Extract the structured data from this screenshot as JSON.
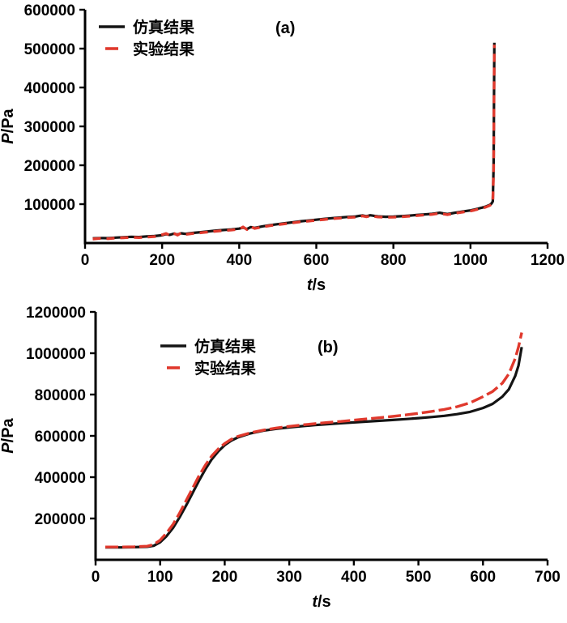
{
  "figure": {
    "background": "#ffffff"
  },
  "chart_data": [
    {
      "type": "line",
      "key": "chart-a",
      "panel_label": "(a)",
      "xlabel_var": "t",
      "xlabel_unit": "/s",
      "ylabel_var": "P",
      "ylabel_unit": "/Pa",
      "xlim": [
        0,
        1200
      ],
      "ylim": [
        0,
        600000
      ],
      "xticks": [
        0,
        200,
        400,
        600,
        800,
        1000,
        1200
      ],
      "yticks": [
        100000,
        200000,
        300000,
        400000,
        500000,
        600000
      ],
      "legend_position": "top-left-inside",
      "grid": false,
      "series": [
        {
          "key": "simulation",
          "name": "仿真结果",
          "color": "#141414",
          "dash": "solid",
          "width": 3.2,
          "x": [
            20,
            40,
            60,
            80,
            100,
            120,
            140,
            160,
            180,
            200,
            210,
            220,
            230,
            240,
            250,
            260,
            280,
            300,
            320,
            340,
            360,
            380,
            400,
            410,
            420,
            430,
            440,
            460,
            480,
            500,
            520,
            540,
            560,
            580,
            600,
            620,
            640,
            660,
            680,
            700,
            710,
            720,
            730,
            740,
            750,
            760,
            780,
            800,
            820,
            840,
            860,
            880,
            900,
            910,
            920,
            930,
            940,
            950,
            960,
            980,
            1000,
            1010,
            1020,
            1030,
            1040,
            1050,
            1055,
            1058,
            1060,
            1062
          ],
          "y": [
            12000,
            13000,
            12500,
            14000,
            15000,
            16000,
            15500,
            17000,
            18000,
            20000,
            23000,
            21000,
            24000,
            22000,
            25000,
            23500,
            26000,
            28000,
            30000,
            32000,
            33500,
            35000,
            37000,
            40000,
            36000,
            41000,
            39000,
            43000,
            46000,
            48500,
            51000,
            53500,
            56000,
            58000,
            60000,
            62000,
            64000,
            65500,
            67000,
            68000,
            69500,
            71000,
            69000,
            71500,
            70000,
            68500,
            67500,
            68000,
            69000,
            70500,
            72000,
            73500,
            75000,
            76500,
            78000,
            76000,
            74500,
            76000,
            78000,
            81000,
            84000,
            86000,
            88500,
            91000,
            94000,
            98000,
            102000,
            107000,
            200000,
            515000
          ]
        },
        {
          "key": "experiment",
          "name": "实验结果",
          "color": "#e0392d",
          "dash": "10 7",
          "width": 3.4,
          "x": [
            20,
            40,
            60,
            80,
            100,
            120,
            140,
            160,
            180,
            200,
            210,
            220,
            230,
            240,
            250,
            260,
            280,
            300,
            320,
            340,
            360,
            380,
            400,
            410,
            420,
            430,
            440,
            460,
            480,
            500,
            520,
            540,
            560,
            580,
            600,
            620,
            640,
            660,
            680,
            700,
            710,
            720,
            730,
            740,
            750,
            760,
            780,
            800,
            820,
            840,
            860,
            880,
            900,
            910,
            920,
            930,
            940,
            950,
            960,
            980,
            1000,
            1010,
            1020,
            1030,
            1040,
            1050,
            1055,
            1058,
            1060,
            1062
          ],
          "y": [
            10500,
            12000,
            11000,
            13000,
            13500,
            14500,
            14000,
            15500,
            16500,
            21500,
            24500,
            19500,
            25500,
            20500,
            26500,
            22000,
            24500,
            26500,
            28500,
            30500,
            32000,
            33500,
            35500,
            41500,
            34500,
            42500,
            37500,
            41500,
            44500,
            47000,
            49500,
            52000,
            54500,
            56500,
            58500,
            60500,
            62500,
            64000,
            65500,
            66500,
            68000,
            69500,
            67500,
            70000,
            68500,
            67000,
            66000,
            66500,
            67500,
            69000,
            70500,
            72000,
            73500,
            75000,
            76500,
            74500,
            73000,
            74500,
            76500,
            79500,
            82500,
            84500,
            87000,
            89500,
            92500,
            96500,
            100500,
            105500,
            190000,
            510000
          ]
        }
      ]
    },
    {
      "type": "line",
      "key": "chart-b",
      "panel_label": "(b)",
      "xlabel_var": "t",
      "xlabel_unit": "/s",
      "ylabel_var": "P",
      "ylabel_unit": "/Pa",
      "xlim": [
        0,
        700
      ],
      "ylim": [
        0,
        1200000
      ],
      "xticks": [
        0,
        100,
        200,
        300,
        400,
        500,
        600,
        700
      ],
      "yticks": [
        200000,
        400000,
        600000,
        800000,
        1000000,
        1200000
      ],
      "legend_position": "top-left-inside",
      "grid": false,
      "series": [
        {
          "key": "simulation",
          "name": "仿真结果",
          "color": "#141414",
          "dash": "solid",
          "width": 3.2,
          "x": [
            15,
            40,
            60,
            80,
            90,
            100,
            110,
            120,
            130,
            140,
            150,
            160,
            170,
            180,
            190,
            200,
            210,
            220,
            240,
            260,
            280,
            300,
            320,
            340,
            360,
            380,
            400,
            420,
            440,
            460,
            480,
            500,
            520,
            540,
            560,
            580,
            600,
            615,
            630,
            640,
            650,
            655,
            660
          ],
          "y": [
            60000,
            60000,
            61000,
            63000,
            68000,
            85000,
            115000,
            155000,
            205000,
            262000,
            322000,
            382000,
            438000,
            487000,
            525000,
            555000,
            577000,
            592000,
            612000,
            625000,
            634000,
            641000,
            647000,
            652000,
            657000,
            661000,
            665000,
            669000,
            673000,
            677000,
            681000,
            686000,
            691000,
            697000,
            705000,
            716000,
            735000,
            755000,
            790000,
            825000,
            890000,
            940000,
            1030000
          ]
        },
        {
          "key": "experiment",
          "name": "实验结果",
          "color": "#e0392d",
          "dash": "16 5",
          "width": 3.4,
          "x": [
            15,
            40,
            60,
            80,
            90,
            100,
            110,
            120,
            130,
            140,
            150,
            160,
            170,
            180,
            190,
            200,
            210,
            220,
            240,
            260,
            280,
            300,
            320,
            340,
            360,
            380,
            400,
            420,
            440,
            460,
            480,
            500,
            520,
            540,
            560,
            580,
            600,
            615,
            630,
            640,
            650,
            655,
            660
          ],
          "y": [
            62000,
            62000,
            63000,
            66000,
            74000,
            95000,
            130000,
            172000,
            225000,
            285000,
            345000,
            405000,
            458000,
            503000,
            537000,
            563000,
            583000,
            597000,
            615000,
            628000,
            638000,
            646000,
            653000,
            659000,
            665000,
            670000,
            676000,
            682000,
            688000,
            694000,
            701000,
            709000,
            718000,
            728000,
            741000,
            760000,
            790000,
            815000,
            855000,
            900000,
            975000,
            1030000,
            1100000
          ]
        }
      ]
    }
  ]
}
